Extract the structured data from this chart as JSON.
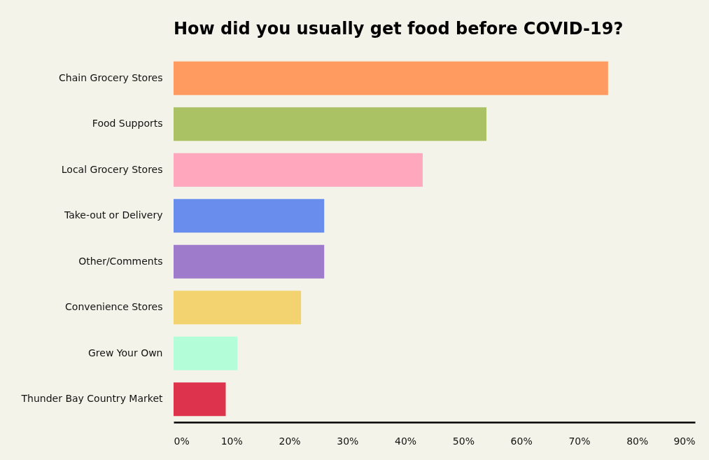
{
  "chart_data": {
    "type": "bar",
    "orientation": "horizontal",
    "title": "How did you usually get food before COVID-19?",
    "categories": [
      "Chain Grocery Stores",
      "Food Supports",
      "Local Grocery Stores",
      "Take-out or Delivery",
      "Other/Comments",
      "Convenience Stores",
      "Grew Your Own",
      "Thunder Bay Country Market"
    ],
    "values": [
      75,
      54,
      43,
      26,
      26,
      22,
      11,
      9
    ],
    "colors": [
      "#ff9b61",
      "#aac264",
      "#ffa8bd",
      "#698ded",
      "#9e7ccb",
      "#f3d36f",
      "#b3fed8",
      "#de334d"
    ],
    "xlim": [
      0,
      90
    ],
    "xticks": [
      {
        "value": 0,
        "label": "0%"
      },
      {
        "value": 10,
        "label": "10%"
      },
      {
        "value": 20,
        "label": "20%"
      },
      {
        "value": 30,
        "label": "30%"
      },
      {
        "value": 40,
        "label": "40%"
      },
      {
        "value": 50,
        "label": "50%"
      },
      {
        "value": 60,
        "label": "60%"
      },
      {
        "value": 70,
        "label": "70%"
      },
      {
        "value": 80,
        "label": "80%"
      },
      {
        "value": 90,
        "label": "90%"
      }
    ],
    "grid": false
  }
}
